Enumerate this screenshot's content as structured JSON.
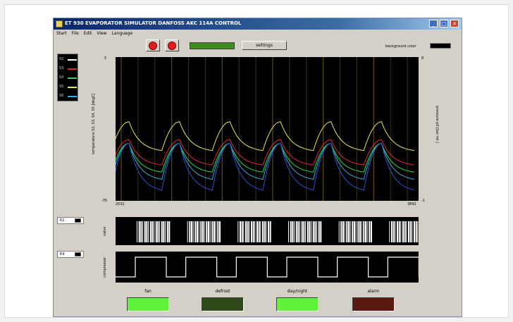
{
  "window": {
    "title": "ET 930 EVAPORATOR SIMULATOR DANFOSS AKC 114A CONTROL",
    "buttons": [
      "_",
      "□",
      "×"
    ]
  },
  "menu": [
    "Start",
    "File",
    "Edit",
    "View",
    "Language"
  ],
  "toolbar": {
    "settings_label": "settings",
    "background_label": "background color",
    "background_color": "#000000",
    "progress_fraction": 1.0
  },
  "legend": [
    {
      "name": "S2",
      "color": "#ffffff"
    },
    {
      "name": "S3",
      "color": "#e0263a"
    },
    {
      "name": "S4",
      "color": "#27d84a"
    },
    {
      "name": "S5",
      "color": "#e6e84c"
    },
    {
      "name": "S6",
      "color": "#38a9d8"
    }
  ],
  "main_chart": {
    "ylabel_left": "temperature S2, S3, S4, S5 [degC]",
    "ylabel_right": "pressure p0 [bar rel.]",
    "y_top_left": "5",
    "y_bottom_left": "-35",
    "y_top_right": "8",
    "y_bottom_right": "-1",
    "x_start": "2032",
    "x_end": "3892"
  },
  "valve_row": {
    "tag": "K1",
    "ylabel": "valve"
  },
  "compressor_row": {
    "tag": "K4",
    "ylabel": "compressor"
  },
  "indicators": [
    {
      "label": "fan",
      "color": "#5ef23a"
    },
    {
      "label": "defrost",
      "color": "#2f4a18"
    },
    {
      "label": "day/night",
      "color": "#5ef23a"
    },
    {
      "label": "alarm",
      "color": "#5a1a12"
    }
  ],
  "chart_data": {
    "type": "line",
    "cycles": 6,
    "x_range": [
      2032,
      3892
    ],
    "ylim": [
      -35,
      5
    ],
    "series": [
      {
        "color": "#e8e85a",
        "peaks": -13,
        "troughs": -21
      },
      {
        "color": "#e0263a",
        "peaks": -18,
        "troughs": -25
      },
      {
        "color": "#27d84a",
        "peaks": -19,
        "troughs": -27
      },
      {
        "color": "#38a9d8",
        "peaks": -19,
        "troughs": -29
      },
      {
        "color": "#2a4fd0",
        "peaks": -19,
        "troughs": -32
      }
    ]
  }
}
